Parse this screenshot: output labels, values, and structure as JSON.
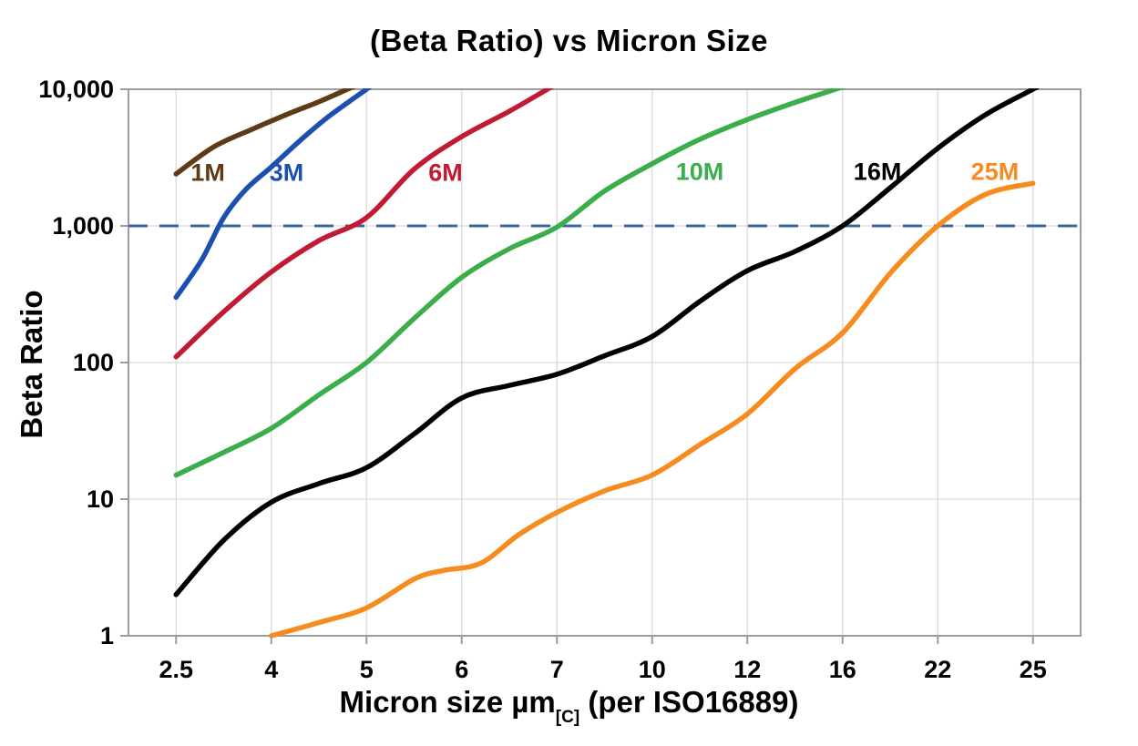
{
  "chart_data": {
    "type": "line",
    "title": "(Beta Ratio) vs Micron Size",
    "ylabel": "Beta Ratio",
    "xlabel": {
      "main": "Micron size µm",
      "sub": "[C]",
      "rest": " (per ISO16889)"
    },
    "x_categories": [
      2.5,
      4,
      5,
      6,
      7,
      10,
      12,
      16,
      22,
      25
    ],
    "x_tick_labels": [
      "2.5",
      "4",
      "5",
      "6",
      "7",
      "10",
      "12",
      "16",
      "22",
      "25"
    ],
    "y_scale": "log",
    "y_range": [
      1,
      10000
    ],
    "y_tick_values": [
      1,
      10,
      100,
      1000,
      10000
    ],
    "y_tick_labels": [
      "1",
      "10",
      "100",
      "1,000",
      "10,000"
    ],
    "grid": true,
    "legend": "inline-curve-labels",
    "reference_line": {
      "value": 1000,
      "style": "dashed",
      "color": "#39679E"
    },
    "colors": {
      "grid": "#DADADA",
      "axis": "#9C9C9C",
      "text": "#000000",
      "background": "#FFFFFF"
    },
    "series": [
      {
        "label": "1M",
        "color": "#5E3A16",
        "label_at": {
          "micron": 3.0,
          "beta": 2450
        },
        "points": [
          [
            2.5,
            2400
          ],
          [
            3.1,
            3800
          ],
          [
            3.7,
            5100
          ],
          [
            4.2,
            6700
          ],
          [
            4.5,
            8100
          ],
          [
            4.8,
            10000
          ]
        ]
      },
      {
        "label": "3M",
        "color": "#1C50B0",
        "label_at": {
          "micron": 4.16,
          "beta": 2450
        },
        "points": [
          [
            2.5,
            300
          ],
          [
            2.9,
            560
          ],
          [
            3.25,
            1150
          ],
          [
            3.6,
            1850
          ],
          [
            4,
            2700
          ],
          [
            4.3,
            4200
          ],
          [
            4.6,
            6300
          ],
          [
            5,
            10000
          ]
        ]
      },
      {
        "label": "6M",
        "color": "#C11A33",
        "label_at": {
          "micron": 5.83,
          "beta": 2450
        },
        "points": [
          [
            2.5,
            110
          ],
          [
            3.25,
            235
          ],
          [
            4,
            460
          ],
          [
            4.5,
            780
          ],
          [
            5,
            1150
          ],
          [
            5.5,
            2600
          ],
          [
            6,
            4500
          ],
          [
            6.5,
            6900
          ],
          [
            6.9,
            10000
          ]
        ]
      },
      {
        "label": "10M",
        "color": "#3BAE4B",
        "label_at": {
          "micron": 11.0,
          "beta": 2500
        },
        "points": [
          [
            2.5,
            15
          ],
          [
            3.25,
            22
          ],
          [
            4,
            33
          ],
          [
            4.5,
            58
          ],
          [
            5,
            100
          ],
          [
            5.5,
            210
          ],
          [
            6,
            420
          ],
          [
            6.5,
            680
          ],
          [
            7,
            980
          ],
          [
            8.5,
            1800
          ],
          [
            10,
            2850
          ],
          [
            11,
            4300
          ],
          [
            12,
            6000
          ],
          [
            14,
            8000
          ],
          [
            15.7,
            10000
          ]
        ]
      },
      {
        "label": "16M",
        "color": "#000000",
        "label_at": {
          "micron": 18.2,
          "beta": 2500
        },
        "points": [
          [
            2.5,
            2
          ],
          [
            3.25,
            5
          ],
          [
            4,
            9.5
          ],
          [
            4.5,
            13
          ],
          [
            5,
            17
          ],
          [
            5.5,
            30
          ],
          [
            6,
            55
          ],
          [
            6.5,
            68
          ],
          [
            7,
            82
          ],
          [
            8.5,
            112
          ],
          [
            10,
            155
          ],
          [
            11,
            280
          ],
          [
            12,
            470
          ],
          [
            14,
            650
          ],
          [
            16,
            1000
          ],
          [
            19,
            1900
          ],
          [
            22,
            3700
          ],
          [
            23.5,
            6500
          ],
          [
            25,
            10000
          ]
        ]
      },
      {
        "label": "25M",
        "color": "#F68B1F",
        "label_at": {
          "micron": 23.8,
          "beta": 2500
        },
        "points": [
          [
            4,
            1
          ],
          [
            4.5,
            1.25
          ],
          [
            5,
            1.6
          ],
          [
            5.5,
            2.6
          ],
          [
            5.8,
            3.0
          ],
          [
            6.2,
            3.4
          ],
          [
            6.6,
            5.5
          ],
          [
            7,
            8
          ],
          [
            8.5,
            11.5
          ],
          [
            10,
            15
          ],
          [
            11,
            25
          ],
          [
            12,
            42
          ],
          [
            14,
            90
          ],
          [
            16,
            165
          ],
          [
            19,
            450
          ],
          [
            22,
            1000
          ],
          [
            23.5,
            1700
          ],
          [
            25,
            2050
          ]
        ]
      }
    ]
  }
}
